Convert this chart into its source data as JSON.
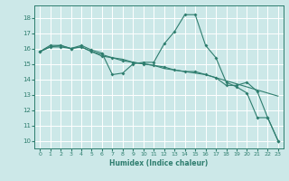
{
  "xlabel": "Humidex (Indice chaleur)",
  "bg_color": "#cce8e8",
  "grid_color": "#ffffff",
  "line_color": "#2e7d6e",
  "xlim": [
    -0.5,
    23.5
  ],
  "ylim": [
    9.5,
    18.8
  ],
  "xticks": [
    0,
    1,
    2,
    3,
    4,
    5,
    6,
    7,
    8,
    9,
    10,
    11,
    12,
    13,
    14,
    15,
    16,
    17,
    18,
    19,
    20,
    21,
    22,
    23
  ],
  "yticks": [
    10,
    11,
    12,
    13,
    14,
    15,
    16,
    17,
    18
  ],
  "series1_x": [
    0,
    1,
    2,
    3,
    4,
    5,
    6,
    7,
    8,
    9,
    10,
    11,
    12,
    13,
    14,
    15,
    16,
    17,
    18,
    19,
    20,
    21,
    22,
    23
  ],
  "series1_y": [
    15.8,
    16.2,
    16.2,
    16.0,
    16.2,
    15.9,
    15.7,
    14.3,
    14.4,
    15.0,
    15.1,
    15.1,
    16.3,
    17.1,
    18.2,
    18.2,
    16.2,
    15.4,
    13.8,
    13.5,
    13.1,
    11.5,
    11.5,
    10.0
  ],
  "series2_x": [
    0,
    1,
    2,
    3,
    4,
    5,
    6,
    7,
    8,
    9,
    10,
    11,
    12,
    13,
    14,
    15,
    16,
    17,
    18,
    19,
    20,
    21,
    22,
    23
  ],
  "series2_y": [
    15.8,
    16.1,
    16.1,
    16.0,
    16.1,
    15.8,
    15.5,
    15.4,
    15.2,
    15.1,
    15.0,
    14.9,
    14.8,
    14.6,
    14.5,
    14.5,
    14.3,
    14.1,
    13.6,
    13.6,
    13.8,
    13.2,
    11.5,
    10.0
  ],
  "series3_x": [
    0,
    1,
    2,
    3,
    4,
    5,
    6,
    7,
    8,
    9,
    10,
    11,
    12,
    13,
    14,
    15,
    16,
    17,
    18,
    19,
    20,
    21,
    22,
    23
  ],
  "series3_y": [
    15.8,
    16.1,
    16.2,
    16.0,
    16.1,
    15.8,
    15.6,
    15.4,
    15.3,
    15.1,
    15.0,
    14.9,
    14.7,
    14.6,
    14.5,
    14.4,
    14.3,
    14.1,
    13.9,
    13.7,
    13.5,
    13.3,
    13.1,
    12.9
  ]
}
